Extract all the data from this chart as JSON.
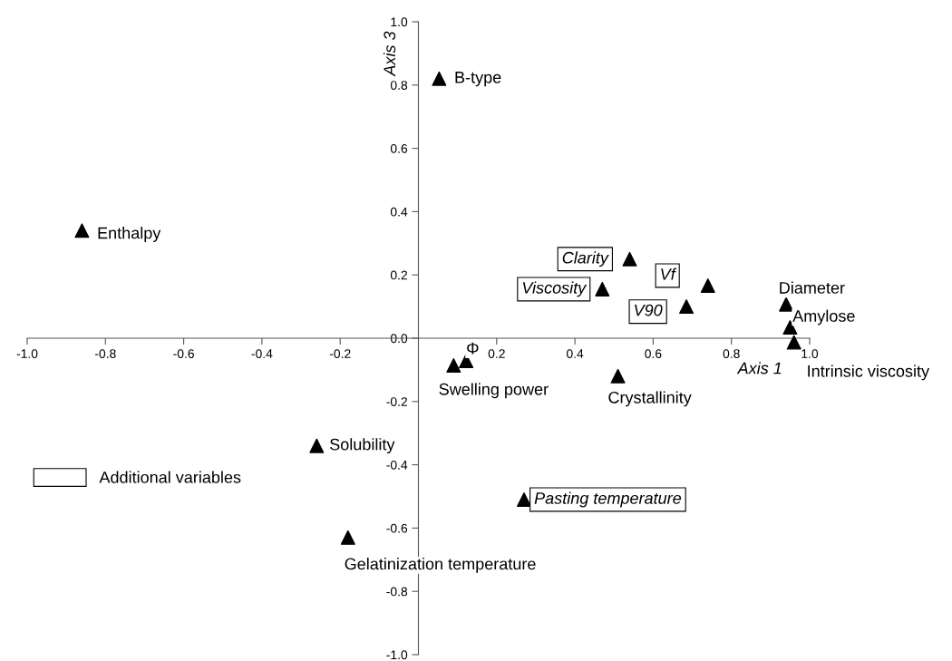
{
  "chart_data": {
    "type": "scatter",
    "xlabel": "Axis 1",
    "ylabel": "Axis 3",
    "xlim": [
      -1.0,
      1.0
    ],
    "ylim": [
      -1.0,
      1.0
    ],
    "xticks": [
      {
        "value": -1,
        "label": "-1.0"
      },
      -0.8,
      -0.6,
      -0.4,
      -0.2,
      0.2,
      0.4,
      0.6,
      0.8,
      {
        "value": 1,
        "label": "1.0"
      }
    ],
    "yticks": [
      {
        "value": -1,
        "label": "-1.0"
      },
      -0.8,
      -0.6,
      -0.4,
      -0.2,
      {
        "value": 0,
        "label": "0.0"
      },
      0.2,
      0.4,
      0.6,
      0.8,
      {
        "value": 1,
        "label": "1.0"
      }
    ],
    "marker": "triangle",
    "grid": false,
    "legend": "left",
    "series": [
      {
        "color": "#000000",
        "x": [
          0.053,
          -0.86,
          0.94,
          0.95,
          0.96,
          0.122,
          0.09,
          0.51,
          -0.26,
          -0.18
        ],
        "values": [
          0.82,
          0.34,
          0.107,
          0.034,
          -0.013,
          -0.072,
          -0.086,
          -0.12,
          -0.34,
          -0.63
        ],
        "value_labels": [
          "B-type",
          "Enthalpy",
          "Diameter",
          "Amylose",
          "Intrinsic viscosity",
          "Φ",
          "Swelling power",
          "Crystallinity",
          "Solubility",
          "Gelatinization temperature"
        ]
      },
      {
        "name": "Additional variables",
        "color": "#000000",
        "x": [
          0.54,
          0.47,
          0.74,
          0.685,
          0.27
        ],
        "values": [
          0.25,
          0.155,
          0.166,
          0.1,
          -0.51
        ],
        "value_labels": [
          "Clarity",
          "Viscosity",
          "Vf",
          "V90",
          "Pasting temperature"
        ]
      }
    ]
  }
}
